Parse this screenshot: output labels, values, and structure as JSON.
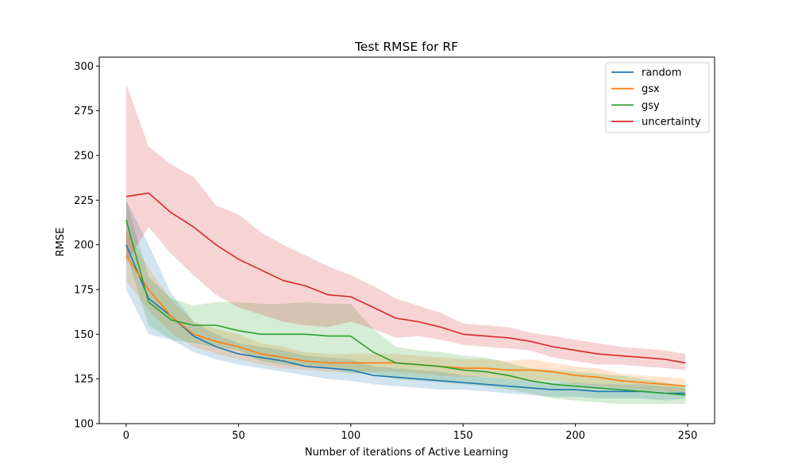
{
  "chart_data": {
    "type": "line",
    "title": "Test RMSE for RF",
    "xlabel": "Number of iterations of Active Learning",
    "ylabel": "RMSE",
    "xlim": [
      -12,
      262
    ],
    "ylim": [
      100,
      305
    ],
    "xticks": [
      0,
      50,
      100,
      150,
      200,
      250
    ],
    "yticks": [
      100,
      125,
      150,
      175,
      200,
      225,
      250,
      275,
      300
    ],
    "grid": false,
    "legend_position": "top-right",
    "x": [
      0,
      10,
      20,
      30,
      40,
      50,
      60,
      70,
      80,
      90,
      100,
      110,
      120,
      130,
      140,
      150,
      160,
      170,
      180,
      190,
      200,
      210,
      220,
      230,
      240,
      249
    ],
    "series": [
      {
        "name": "random",
        "color": "#1f77b4",
        "values": [
          200,
          170,
          160,
          149,
          143,
          139,
          137,
          135,
          132,
          131,
          130,
          127,
          126,
          125,
          124,
          123,
          122,
          121,
          120,
          119,
          119,
          118,
          118,
          118,
          117,
          117
        ],
        "lower": [
          175,
          150,
          147,
          140,
          136,
          133,
          131,
          129,
          127,
          125,
          124,
          122,
          121,
          120,
          119,
          119,
          118,
          117,
          116,
          115,
          115,
          114,
          114,
          114,
          113,
          114
        ],
        "upper": [
          225,
          200,
          173,
          157,
          150,
          145,
          143,
          141,
          138,
          137,
          136,
          132,
          131,
          130,
          129,
          127,
          126,
          125,
          124,
          123,
          123,
          122,
          122,
          122,
          121,
          120
        ]
      },
      {
        "name": "gsx",
        "color": "#ff7f0e",
        "values": [
          194,
          175,
          160,
          150,
          146,
          143,
          139,
          137,
          135,
          134,
          134,
          134,
          134,
          133,
          132,
          131,
          131,
          130,
          130,
          129,
          127,
          126,
          124,
          123,
          122,
          121
        ],
        "lower": [
          180,
          163,
          151,
          143,
          139,
          136,
          133,
          131,
          130,
          129,
          129,
          129,
          129,
          128,
          127,
          126,
          126,
          125,
          124,
          124,
          122,
          121,
          120,
          119,
          118,
          117
        ],
        "upper": [
          208,
          187,
          169,
          157,
          153,
          150,
          145,
          143,
          140,
          139,
          139,
          139,
          139,
          138,
          137,
          136,
          136,
          135,
          136,
          134,
          132,
          131,
          128,
          127,
          126,
          125
        ]
      },
      {
        "name": "gsy",
        "color": "#2ca02c",
        "values": [
          214,
          168,
          158,
          155,
          155,
          152,
          150,
          150,
          150,
          149,
          149,
          140,
          134,
          133,
          132,
          130,
          129,
          127,
          124,
          122,
          121,
          120,
          119,
          118,
          117,
          116
        ],
        "lower": [
          195,
          155,
          147,
          145,
          143,
          141,
          135,
          133,
          132,
          131,
          128,
          128,
          125,
          124,
          123,
          122,
          121,
          119,
          117,
          114,
          113,
          112,
          111,
          111,
          111,
          111
        ],
        "upper": [
          225,
          182,
          170,
          166,
          168,
          168,
          167,
          167,
          168,
          167,
          167,
          153,
          143,
          141,
          140,
          138,
          137,
          134,
          131,
          130,
          129,
          128,
          127,
          125,
          123,
          121
        ]
      },
      {
        "name": "uncertainty",
        "color": "#d62728",
        "values": [
          227,
          229,
          218,
          210,
          200,
          192,
          186,
          180,
          177,
          172,
          171,
          165,
          159,
          157,
          154,
          150,
          149,
          148,
          146,
          143,
          141,
          139,
          138,
          137,
          136,
          134
        ],
        "lower": [
          190,
          210,
          195,
          183,
          172,
          165,
          161,
          157,
          155,
          154,
          157,
          153,
          148,
          149,
          147,
          144,
          143,
          142,
          141,
          137,
          135,
          133,
          133,
          132,
          131,
          130
        ],
        "upper": [
          290,
          255,
          245,
          238,
          222,
          217,
          207,
          200,
          194,
          188,
          183,
          177,
          170,
          166,
          162,
          156,
          155,
          154,
          151,
          149,
          147,
          145,
          143,
          142,
          141,
          139
        ]
      }
    ]
  }
}
